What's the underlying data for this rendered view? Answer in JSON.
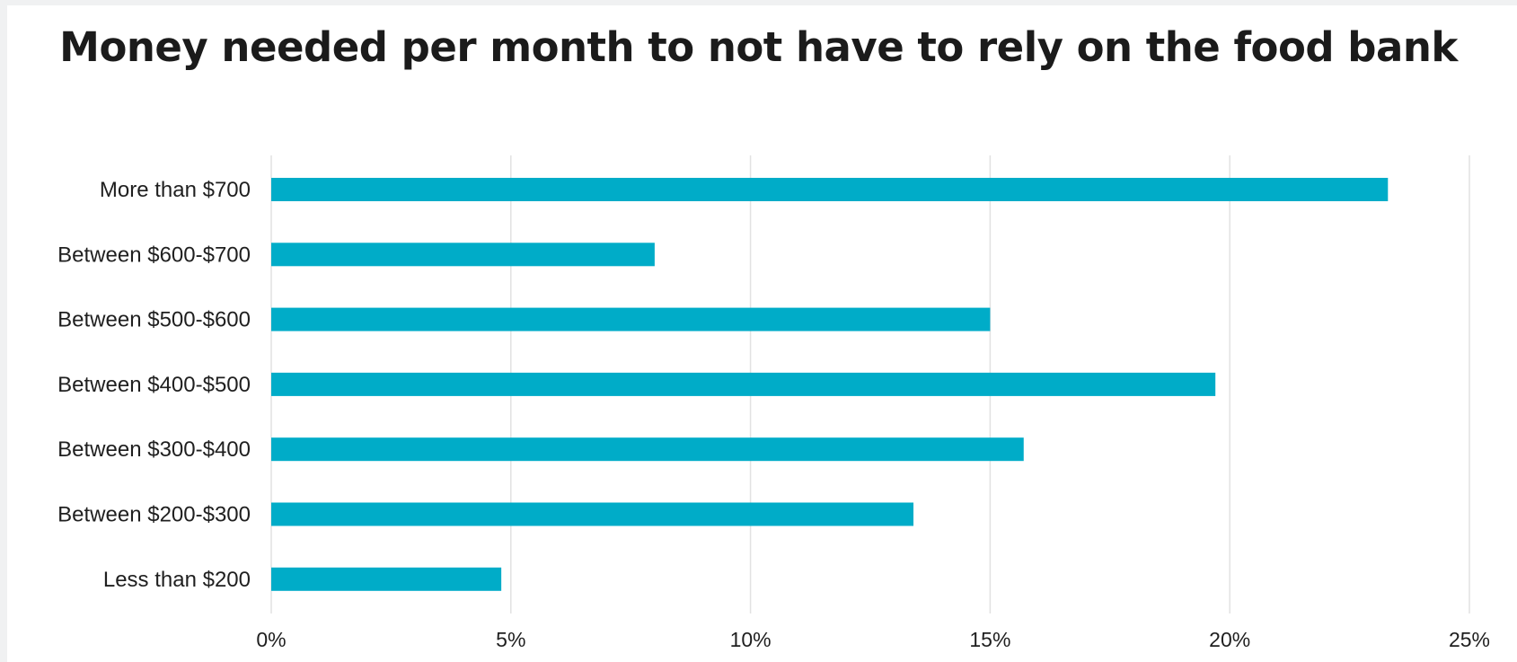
{
  "chart_data": {
    "type": "bar",
    "orientation": "horizontal",
    "title": "Money needed per month to not have to rely on the food bank",
    "categories": [
      "More than $700",
      "Between $600-$700",
      "Between $500-$600",
      "Between $400-$500",
      "Between $300-$400",
      "Between $200-$300",
      "Less than $200"
    ],
    "values": [
      23.3,
      8.0,
      15.0,
      19.7,
      15.7,
      13.4,
      4.8
    ],
    "xlim": [
      0,
      25
    ],
    "x_ticks": [
      0,
      5,
      10,
      15,
      20,
      25
    ],
    "x_tick_labels": [
      "0%",
      "5%",
      "10%",
      "15%",
      "20%",
      "25%"
    ],
    "xlabel": "",
    "ylabel": "",
    "grid": "vertical",
    "legend": "none",
    "bar_color": "#00acc8",
    "grid_color": "#e2e2e2"
  }
}
